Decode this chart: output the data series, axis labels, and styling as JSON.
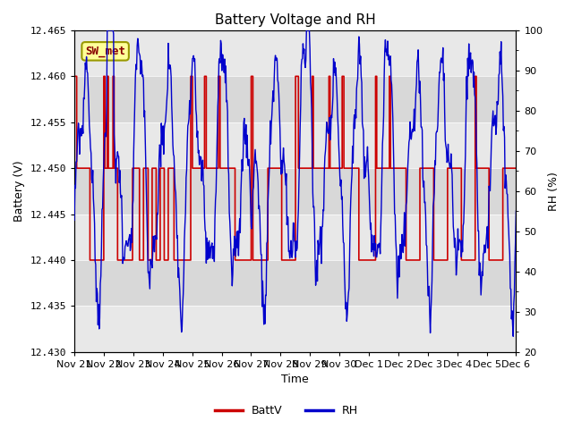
{
  "title": "Battery Voltage and RH",
  "xlabel": "Time",
  "ylabel_left": "Battery (V)",
  "ylabel_right": "RH (%)",
  "station_label": "SW_met",
  "series_labels": [
    "BattV",
    "RH"
  ],
  "batt_color": "#cc0000",
  "rh_color": "#0000cc",
  "ylim_left": [
    12.43,
    12.465
  ],
  "ylim_right": [
    20,
    100
  ],
  "yticks_left": [
    12.43,
    12.435,
    12.44,
    12.445,
    12.45,
    12.455,
    12.46,
    12.465
  ],
  "yticks_right": [
    20,
    30,
    40,
    50,
    60,
    70,
    80,
    90,
    100
  ],
  "xtick_labels": [
    "Nov 21",
    "Nov 22",
    "Nov 23",
    "Nov 24",
    "Nov 25",
    "Nov 26",
    "Nov 27",
    "Nov 28",
    "Nov 29",
    "Nov 30",
    "Dec 1",
    "Dec 2",
    "Dec 3",
    "Dec 4",
    "Dec 5",
    "Dec 6"
  ],
  "title_fontsize": 11,
  "axis_label_fontsize": 9,
  "tick_fontsize": 8,
  "legend_fontsize": 9,
  "band_colors": [
    "#e8e8e8",
    "#d8d8d8"
  ],
  "legend_box_facecolor": "#ffff99",
  "legend_box_edgecolor": "#999900",
  "station_text_color": "#880000",
  "n_days": 16,
  "batt_low": 12.44,
  "batt_mid": 12.45,
  "batt_high": 12.46,
  "rh_min": 20,
  "rh_max": 100
}
